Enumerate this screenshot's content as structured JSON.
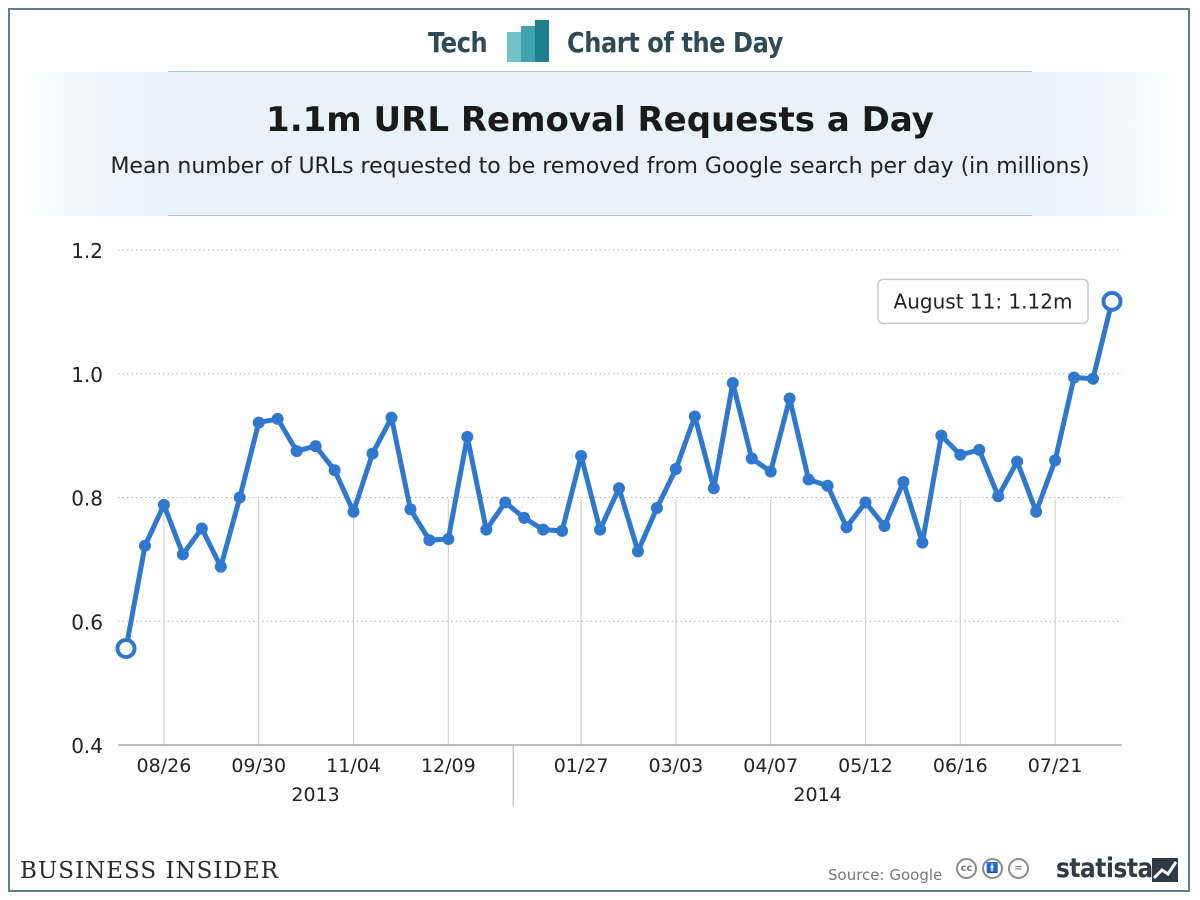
{
  "header": {
    "left_label": "Tech",
    "right_label": "Chart of the Day"
  },
  "footer": {
    "brand": "Business Insider",
    "source": "Source: Google",
    "cc_icons": [
      "cc-icon",
      "by-icon",
      "nd-icon"
    ],
    "statista": "statista"
  },
  "colors": {
    "line": "#2f78d0",
    "header_text": "#2f4a57",
    "band": "#e8f3f7"
  },
  "chart_data": {
    "type": "line",
    "title": "1.1m URL Removal Requests a Day",
    "subtitle": "Mean number of URLs requested to be removed from Google search per day (in millions)",
    "ylim": [
      0.4,
      1.2
    ],
    "yticks": [
      0.4,
      0.6,
      0.8,
      1.0,
      1.2
    ],
    "ytick_labels": [
      "0.4",
      "0.6",
      "0.8",
      "1.0",
      "1.2"
    ],
    "grid": "horizontal-dotted",
    "xtick_labels": [
      {
        "label": "08/26",
        "index": 2
      },
      {
        "label": "09/30",
        "index": 7
      },
      {
        "label": "11/04",
        "index": 12
      },
      {
        "label": "12/09",
        "index": 17
      },
      {
        "label": "01/27",
        "index": 24
      },
      {
        "label": "03/03",
        "index": 29
      },
      {
        "label": "04/07",
        "index": 34
      },
      {
        "label": "05/12",
        "index": 39
      },
      {
        "label": "06/16",
        "index": 44
      },
      {
        "label": "07/21",
        "index": 49
      }
    ],
    "year_labels": [
      {
        "label": "2013",
        "from_index": 0,
        "to_index": 20
      },
      {
        "label": "2014",
        "from_index": 20,
        "to_index": 52
      }
    ],
    "series": [
      {
        "values": [
          0.556,
          0.722,
          0.788,
          0.708,
          0.75,
          0.688,
          0.8,
          0.921,
          0.927,
          0.875,
          0.883,
          0.844,
          0.777,
          0.871,
          0.929,
          0.781,
          0.731,
          0.733,
          0.898,
          0.748,
          0.792,
          0.767,
          0.748,
          0.746,
          0.867,
          0.748,
          0.815,
          0.713,
          0.783,
          0.846,
          0.931,
          0.815,
          0.985,
          0.863,
          0.842,
          0.96,
          0.829,
          0.819,
          0.752,
          0.792,
          0.754,
          0.825,
          0.727,
          0.9,
          0.869,
          0.877,
          0.802,
          0.858,
          0.777,
          0.86,
          0.994,
          0.992,
          1.117
        ]
      }
    ],
    "annotation": {
      "text": "August 11: 1.12m",
      "index": 52
    }
  }
}
